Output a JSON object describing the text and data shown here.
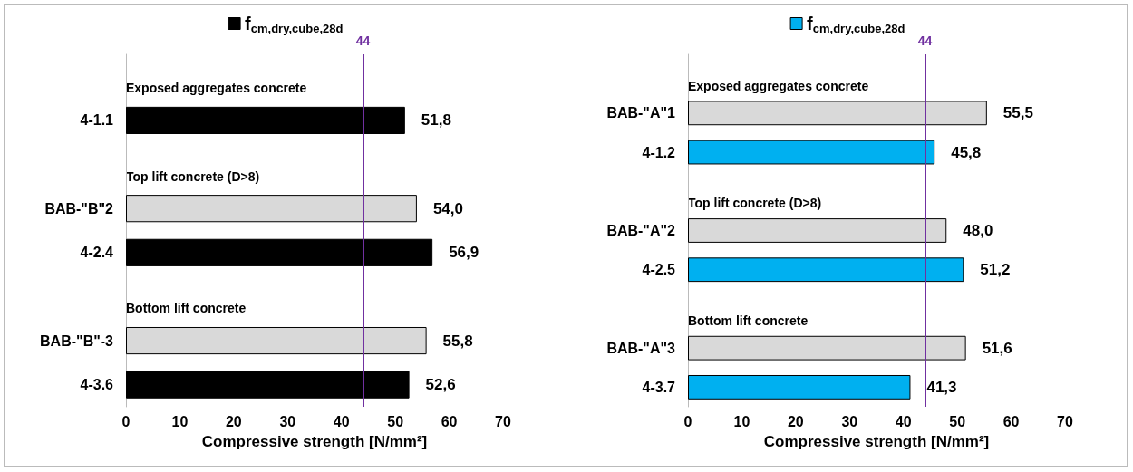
{
  "chart_data": [
    {
      "type": "bar",
      "orientation": "horizontal",
      "categories": [
        null,
        "4-1.1",
        null,
        "BAB-\"B\"2",
        "4-2.4",
        null,
        "BAB-\"B\"-3",
        "4-3.6"
      ],
      "series": [
        {
          "name": "f$_{cm,dry,cube,28d}$",
          "color": "#000000",
          "values": [
            null,
            51.8,
            null,
            54.0,
            56.9,
            null,
            55.8,
            52.6
          ],
          "colors": [
            null,
            "#000000",
            null,
            "#d9d9d9",
            "#000000",
            null,
            "#d9d9d9",
            "#000000"
          ],
          "value_labels": [
            null,
            "51,8",
            null,
            "54,0",
            "56,9",
            null,
            "55,8",
            "52,6"
          ]
        }
      ],
      "xlabel": "Compressive strength [N/mm²]",
      "xlim": [
        0,
        70
      ],
      "xticks": [
        0,
        10,
        20,
        30,
        40,
        50,
        60,
        70
      ],
      "ref_lines": [
        {
          "axis": "x",
          "value": 44,
          "label": "44",
          "color": "#7030a0"
        }
      ],
      "annotations": [
        "Exposed aggregates concrete",
        "Top lift concrete (D>8)",
        "Bottom lift concrete"
      ],
      "legend": "top",
      "grid": false
    },
    {
      "type": "bar",
      "orientation": "horizontal",
      "categories": [
        null,
        "BAB-\"A\"1",
        "4-1.2",
        null,
        "BAB-\"A\"2",
        "4-2.5",
        null,
        "BAB-\"A\"3",
        "4-3.7"
      ],
      "series": [
        {
          "name": "f$_{cm,dry,cube,28d}$",
          "color": "#00b0f0",
          "values": [
            null,
            55.5,
            45.8,
            null,
            48.0,
            51.2,
            null,
            51.6,
            41.3
          ],
          "colors": [
            null,
            "#d9d9d9",
            "#00b0f0",
            null,
            "#d9d9d9",
            "#00b0f0",
            null,
            "#d9d9d9",
            "#00b0f0"
          ],
          "value_labels": [
            null,
            "55,5",
            "45,8",
            null,
            "48,0",
            "51,2",
            null,
            "51,6",
            "41,3"
          ]
        }
      ],
      "xlabel": "Compressive strength [N/mm²]",
      "xlim": [
        0,
        70
      ],
      "xticks": [
        0,
        10,
        20,
        30,
        40,
        50,
        60,
        70
      ],
      "ref_lines": [
        {
          "axis": "x",
          "value": 44,
          "label": "44",
          "color": "#7030a0"
        }
      ],
      "annotations": [
        "Exposed aggregates concrete",
        "Top lift concrete (D>8)",
        "Bottom lift concrete"
      ],
      "legend": "top",
      "grid": false
    }
  ]
}
